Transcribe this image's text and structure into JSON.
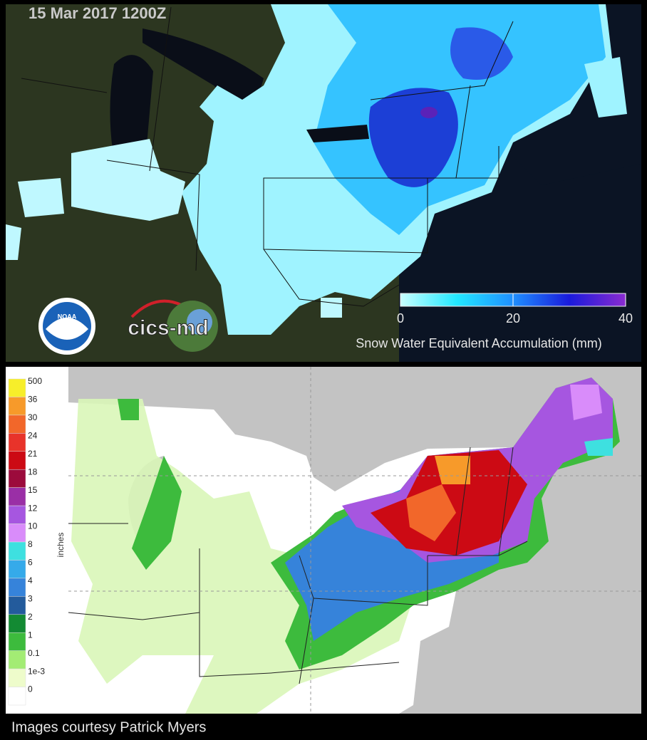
{
  "top_panel": {
    "timestamp": "15 Mar 2017 1200Z",
    "colorbar": {
      "ticks": [
        "0",
        "20",
        "40"
      ],
      "label": "Snow Water Equivalent Accumulation (mm)",
      "colors": [
        "#c8ffff",
        "#22e8ff",
        "#1f8fff",
        "#1a1adc",
        "#8a2bd0"
      ]
    },
    "logos": [
      "NOAA",
      "cics-md"
    ]
  },
  "bottom_panel": {
    "unit": "inches",
    "legend": [
      {
        "label": "500",
        "color": "#f7ee2a"
      },
      {
        "label": "36",
        "color": "#f79a2a"
      },
      {
        "label": "30",
        "color": "#f2672a"
      },
      {
        "label": "24",
        "color": "#e8332a"
      },
      {
        "label": "21",
        "color": "#cc0a14"
      },
      {
        "label": "18",
        "color": "#9c0b3c"
      },
      {
        "label": "15",
        "color": "#9a2fa6"
      },
      {
        "label": "12",
        "color": "#a656e0"
      },
      {
        "label": "10",
        "color": "#d98cfa"
      },
      {
        "label": "8",
        "color": "#3ee0e0"
      },
      {
        "label": "6",
        "color": "#35aaea"
      },
      {
        "label": "4",
        "color": "#3683da"
      },
      {
        "label": "3",
        "color": "#235b9c"
      },
      {
        "label": "2",
        "color": "#138a33"
      },
      {
        "label": "1",
        "color": "#3dbb3d"
      },
      {
        "label": "0.1",
        "color": "#a3ec74"
      },
      {
        "label": "1e-3",
        "color": "#eefccb"
      },
      {
        "label": "0",
        "color": "#ffffff"
      }
    ]
  },
  "caption": "Images courtesy Patrick Myers"
}
